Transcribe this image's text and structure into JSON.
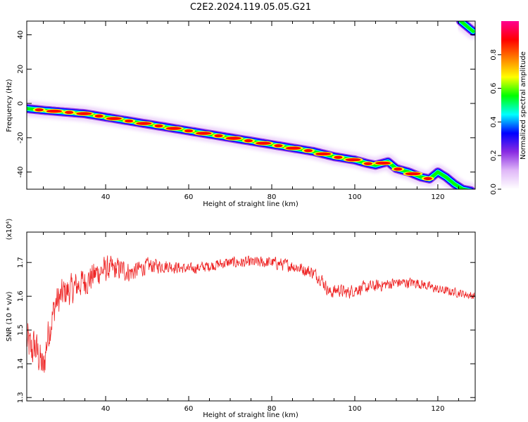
{
  "figure": {
    "title": "C2E2.2024.119.05.05.G21"
  },
  "chart_data": [
    {
      "type": "heatmap",
      "xlabel": "Height of straight line (km)",
      "ylabel": "Frequency (Hz)",
      "xlim": [
        21,
        129
      ],
      "ylim": [
        -50,
        48
      ],
      "x_ticks": [
        40,
        60,
        80,
        100,
        120
      ],
      "y_ticks": [
        -40,
        -20,
        0,
        20,
        40
      ],
      "grid": false,
      "ridge": {
        "x": [
          21,
          25,
          30,
          35,
          40,
          45,
          50,
          55,
          60,
          65,
          70,
          75,
          80,
          85,
          90,
          95,
          100,
          103,
          105,
          108,
          110,
          113,
          116,
          118,
          120,
          122,
          124,
          126,
          128
        ],
        "y": [
          -3,
          -4,
          -5,
          -6,
          -8,
          -10,
          -12,
          -14,
          -16,
          -18,
          -20,
          -22,
          -24,
          -26,
          -28,
          -31,
          -33,
          -35,
          -36,
          -34,
          -38,
          -40,
          -43,
          -44,
          -40,
          -43,
          -47,
          -50,
          -51
        ]
      },
      "ridge_upper": {
        "x": [
          125.5,
          126.5,
          127.5,
          128.5
        ],
        "y": [
          48,
          46,
          44,
          42
        ]
      },
      "colorbar": {
        "label": "Normalized spectral amplitude",
        "range": [
          0,
          1
        ],
        "ticks": [
          0.0,
          0.2,
          0.4,
          0.6,
          0.8
        ],
        "colors": [
          "#ffffff",
          "#e0b8f8",
          "#8a2be2",
          "#0000ff",
          "#00ffff",
          "#00ff00",
          "#ffff00",
          "#ff8000",
          "#ff0000",
          "#ff0090"
        ]
      }
    },
    {
      "type": "line",
      "xlabel": "Height of straight line (km)",
      "ylabel": "SNR (10 * v/v)",
      "y_scale_note": "(x10⁴)",
      "xlim": [
        21,
        129
      ],
      "ylim": [
        1.29,
        1.79
      ],
      "x_ticks": [
        40,
        60,
        80,
        100,
        120
      ],
      "y_ticks": [
        1.3,
        1.4,
        1.5,
        1.6,
        1.7
      ],
      "grid": false,
      "color": "#ee2222",
      "trend": {
        "x": [
          21,
          22,
          23,
          24,
          25,
          26,
          28,
          30,
          32,
          34,
          36,
          38,
          40,
          42,
          44,
          46,
          48,
          50,
          55,
          60,
          65,
          70,
          75,
          80,
          85,
          90,
          92,
          94,
          96,
          98,
          100,
          105,
          110,
          115,
          120,
          125,
          129
        ],
        "y": [
          1.47,
          1.44,
          1.45,
          1.42,
          1.38,
          1.48,
          1.58,
          1.61,
          1.62,
          1.64,
          1.65,
          1.67,
          1.68,
          1.68,
          1.68,
          1.67,
          1.68,
          1.69,
          1.69,
          1.68,
          1.69,
          1.7,
          1.7,
          1.7,
          1.69,
          1.67,
          1.65,
          1.61,
          1.62,
          1.61,
          1.62,
          1.63,
          1.64,
          1.64,
          1.62,
          1.61,
          1.6
        ]
      },
      "noise_amplitude": {
        "x": [
          21,
          30,
          40,
          50,
          60,
          90,
          100,
          129
        ],
        "y": [
          0.08,
          0.06,
          0.05,
          0.03,
          0.02,
          0.025,
          0.025,
          0.015
        ]
      }
    }
  ]
}
